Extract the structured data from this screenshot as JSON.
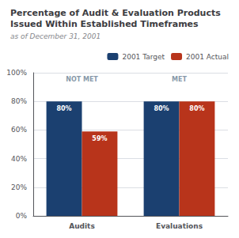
{
  "chart_data": {
    "type": "bar",
    "title": "Percentage of Audit & Evaluation Products\nIssued Within Established Timeframes",
    "subtitle": "as of December 31, 2001",
    "categories": [
      "Audits",
      "Evaluations"
    ],
    "series": [
      {
        "name": "2001 Target",
        "color": "#1B4070",
        "values": [
          80,
          80
        ],
        "value_labels": [
          "80%",
          "80%"
        ]
      },
      {
        "name": "2001 Actual",
        "color": "#B8341B",
        "values": [
          59,
          80
        ],
        "value_labels": [
          "59%",
          "80%"
        ]
      }
    ],
    "ylim": [
      0,
      100
    ],
    "yticks": [
      {
        "value": 0,
        "label": "0%"
      },
      {
        "value": 20,
        "label": "20%"
      },
      {
        "value": 40,
        "label": "40%"
      },
      {
        "value": 60,
        "label": "60%"
      },
      {
        "value": 80,
        "label": "80%"
      },
      {
        "value": 100,
        "label": "100%"
      }
    ],
    "grid": true,
    "legend": "upper right",
    "data_labels": true,
    "annotations": [
      {
        "text": "NOT MET",
        "category": "Audits"
      },
      {
        "text": "MET",
        "category": "Evaluations"
      }
    ]
  }
}
